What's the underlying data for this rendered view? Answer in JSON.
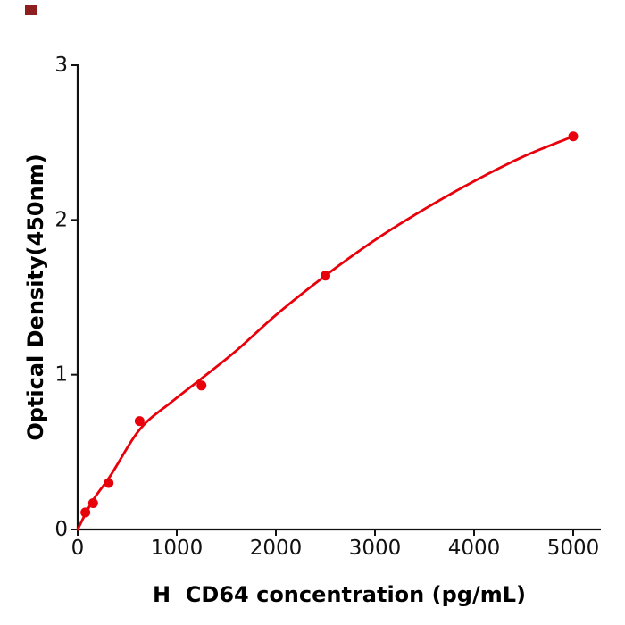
{
  "page": {
    "background": "#ffffff"
  },
  "decoration": {
    "corner_marker_color": "#8e1f1f"
  },
  "chart_data": {
    "type": "scatter",
    "title": "",
    "xlabel": "H  CD64 concentration (pg/mL)",
    "ylabel": "Optical Density(450nm)",
    "xlim": [
      0,
      5280
    ],
    "ylim": [
      0,
      3
    ],
    "x_ticks": [
      0,
      1000,
      2000,
      3000,
      4000,
      5000
    ],
    "y_ticks": [
      0,
      1,
      2,
      3
    ],
    "grid": false,
    "legend_position": "none",
    "axis_color": "#111111",
    "point_color": "#e8000b",
    "line_color": "#e8000b",
    "points": {
      "x": [
        78.125,
        156.25,
        312.5,
        625,
        1250,
        2500,
        5000
      ],
      "y": [
        0.11,
        0.17,
        0.3,
        0.7,
        0.93,
        1.64,
        2.54
      ]
    },
    "fit_curve_anchors": {
      "x": [
        0,
        78,
        156,
        313,
        625,
        950,
        1250,
        1600,
        2000,
        2500,
        3000,
        3500,
        4000,
        4500,
        5000
      ],
      "y": [
        0.0,
        0.1,
        0.19,
        0.33,
        0.645,
        0.825,
        0.975,
        1.155,
        1.385,
        1.64,
        1.87,
        2.07,
        2.25,
        2.41,
        2.54
      ]
    }
  }
}
